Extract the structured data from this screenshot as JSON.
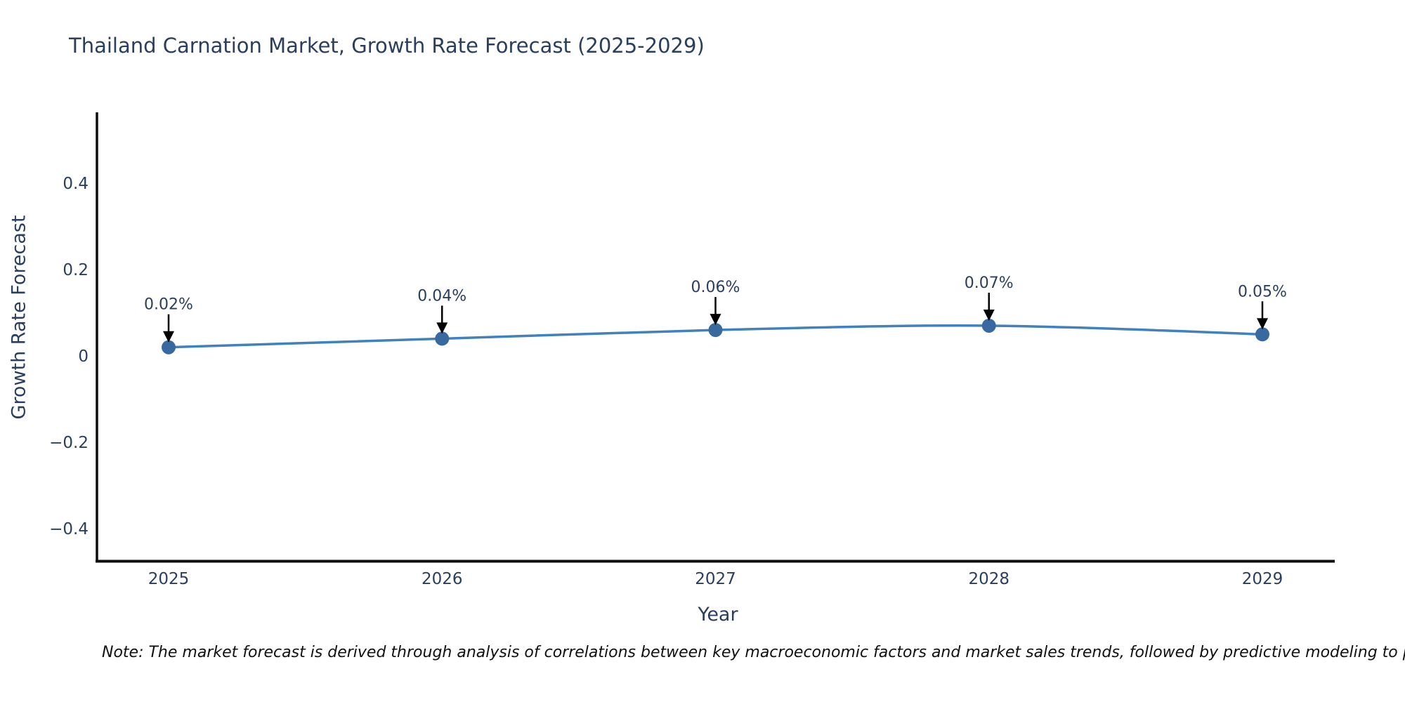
{
  "title": "Thailand Carnation Market, Growth Rate Forecast (2025-2029)",
  "note": "Note: The market forecast is derived through analysis of correlations between key macroeconomic factors and market sales trends, followed by predictive modeling to project future sales",
  "chart_data": {
    "type": "line",
    "title": "Thailand Carnation Market, Growth Rate Forecast (2025-2029)",
    "xlabel": "Year",
    "ylabel": "Growth Rate Forecast",
    "categories": [
      "2025",
      "2026",
      "2027",
      "2028",
      "2029"
    ],
    "series": [
      {
        "name": "Growth Rate Forecast",
        "values": [
          0.02,
          0.04,
          0.06,
          0.07,
          0.05
        ],
        "point_labels": [
          "0.02%",
          "0.04%",
          "0.06%",
          "0.07%",
          "0.05%"
        ]
      }
    ],
    "y_ticks": [
      0.4,
      0.2,
      0,
      -0.2,
      -0.4
    ],
    "y_tick_labels": [
      "0.4",
      "0.2",
      "0",
      "−0.2",
      "−0.4"
    ],
    "ylim": [
      -0.48,
      0.565
    ],
    "grid": false,
    "legend_position": "none",
    "annotations_have_arrows": true,
    "colors": {
      "line": "#4181bd",
      "marker": "#38699f",
      "axis_line": "#0d0d0d",
      "text": "#2a3f5f",
      "arrow": "#000000"
    }
  }
}
